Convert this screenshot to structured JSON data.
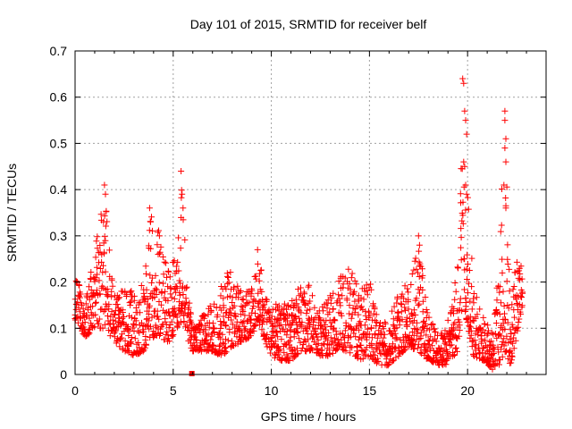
{
  "chart_data": {
    "type": "scatter",
    "title": "Day 101 of 2015, SRMTID for receiver belf",
    "xlabel": "GPS time / hours",
    "ylabel": "SRMTID / TECUs",
    "xlim": [
      0,
      24
    ],
    "ylim": [
      0,
      0.7
    ],
    "xticks": [
      0,
      5,
      10,
      15,
      20
    ],
    "yticks": [
      0,
      0.1,
      0.2,
      0.3,
      0.4,
      0.5,
      0.6,
      0.7
    ],
    "grid": true,
    "marker": "+",
    "color": "#ff0000",
    "data_end_hour": 22.8,
    "gap": {
      "x": 5.95,
      "y": 0.0
    },
    "envelope": [
      [
        0.0,
        0.12,
        0.22
      ],
      [
        0.5,
        0.08,
        0.16
      ],
      [
        1.0,
        0.1,
        0.27
      ],
      [
        1.5,
        0.1,
        0.4
      ],
      [
        2.0,
        0.07,
        0.17
      ],
      [
        2.5,
        0.05,
        0.2
      ],
      [
        3.0,
        0.04,
        0.18
      ],
      [
        3.5,
        0.05,
        0.2
      ],
      [
        3.8,
        0.08,
        0.35
      ],
      [
        4.3,
        0.08,
        0.31
      ],
      [
        4.8,
        0.07,
        0.22
      ],
      [
        5.2,
        0.1,
        0.28
      ],
      [
        5.45,
        0.12,
        0.44
      ],
      [
        5.7,
        0.08,
        0.22
      ],
      [
        6.0,
        0.05,
        0.1
      ],
      [
        6.5,
        0.05,
        0.13
      ],
      [
        7.0,
        0.05,
        0.16
      ],
      [
        7.5,
        0.04,
        0.2
      ],
      [
        8.0,
        0.06,
        0.24
      ],
      [
        8.5,
        0.07,
        0.18
      ],
      [
        9.0,
        0.08,
        0.19
      ],
      [
        9.3,
        0.12,
        0.27
      ],
      [
        9.7,
        0.07,
        0.19
      ],
      [
        10.0,
        0.04,
        0.16
      ],
      [
        10.5,
        0.03,
        0.15
      ],
      [
        11.0,
        0.03,
        0.16
      ],
      [
        11.5,
        0.05,
        0.21
      ],
      [
        12.0,
        0.05,
        0.19
      ],
      [
        12.5,
        0.04,
        0.14
      ],
      [
        13.0,
        0.04,
        0.17
      ],
      [
        13.5,
        0.06,
        0.22
      ],
      [
        14.0,
        0.04,
        0.23
      ],
      [
        14.5,
        0.03,
        0.19
      ],
      [
        15.0,
        0.04,
        0.21
      ],
      [
        15.5,
        0.02,
        0.11
      ],
      [
        16.0,
        0.02,
        0.12
      ],
      [
        16.5,
        0.04,
        0.18
      ],
      [
        17.0,
        0.06,
        0.2
      ],
      [
        17.5,
        0.05,
        0.29
      ],
      [
        18.0,
        0.03,
        0.13
      ],
      [
        18.5,
        0.02,
        0.08
      ],
      [
        19.0,
        0.02,
        0.12
      ],
      [
        19.5,
        0.05,
        0.25
      ],
      [
        19.8,
        0.15,
        0.64
      ],
      [
        20.0,
        0.1,
        0.45
      ],
      [
        20.3,
        0.04,
        0.2
      ],
      [
        20.8,
        0.03,
        0.13
      ],
      [
        21.3,
        0.01,
        0.09
      ],
      [
        21.6,
        0.02,
        0.25
      ],
      [
        21.9,
        0.05,
        0.57
      ],
      [
        22.2,
        0.02,
        0.16
      ],
      [
        22.5,
        0.08,
        0.26
      ],
      [
        22.8,
        0.15,
        0.25
      ]
    ],
    "peaks": [
      [
        1.5,
        0.41
      ],
      [
        1.55,
        0.39
      ],
      [
        1.45,
        0.33
      ],
      [
        3.8,
        0.36
      ],
      [
        3.85,
        0.33
      ],
      [
        4.3,
        0.3
      ],
      [
        5.4,
        0.44
      ],
      [
        5.45,
        0.39
      ],
      [
        5.5,
        0.36
      ],
      [
        9.3,
        0.27
      ],
      [
        17.5,
        0.3
      ],
      [
        17.55,
        0.28
      ],
      [
        19.75,
        0.64
      ],
      [
        19.8,
        0.63
      ],
      [
        19.85,
        0.57
      ],
      [
        19.9,
        0.55
      ],
      [
        19.95,
        0.52
      ],
      [
        19.8,
        0.46
      ],
      [
        19.85,
        0.45
      ],
      [
        19.9,
        0.41
      ],
      [
        19.95,
        0.39
      ],
      [
        21.9,
        0.57
      ],
      [
        21.9,
        0.55
      ],
      [
        21.95,
        0.51
      ],
      [
        21.9,
        0.49
      ],
      [
        21.95,
        0.46
      ],
      [
        21.85,
        0.41
      ],
      [
        21.95,
        0.36
      ]
    ],
    "sample_step_hours": 0.0167
  }
}
